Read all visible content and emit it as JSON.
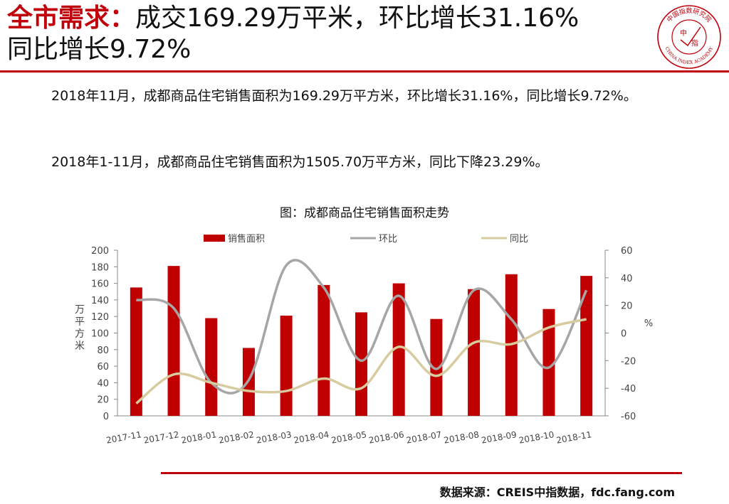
{
  "title": {
    "highlight": "全市需求：",
    "line1_rest": "成交169.29万平米，环比增长31.16%",
    "line2": "同比增长9.72%"
  },
  "logo": {
    "center_text_top": "中",
    "center_text_bottom": "指",
    "ring_text_cn": "中国指数研究院",
    "ring_text_en": "CHINA INDEX ACADEMY",
    "color": "#c0000b"
  },
  "paragraphs": [
    "2018年11月，成都商品住宅销售面积为169.29万平方米，环比增长31.16%，同比增长9.72%。",
    "2018年1-11月，成都商品住宅销售面积为1505.70万平方米，同比下降23.29%。"
  ],
  "chart_data": {
    "type": "bar",
    "title": "图：成都商品住宅销售面积走势",
    "categories": [
      "2017-11",
      "2017-12",
      "2018-01",
      "2018-02",
      "2018-03",
      "2018-04",
      "2018-05",
      "2018-06",
      "2018-07",
      "2018-08",
      "2018-09",
      "2018-10",
      "2018-11"
    ],
    "series": [
      {
        "name": "销售面积",
        "kind": "bar",
        "axis": "left",
        "color": "#c00000",
        "values": [
          155,
          181,
          118,
          82,
          121,
          158,
          125,
          160,
          117,
          153,
          171,
          129,
          169
        ]
      },
      {
        "name": "环比",
        "kind": "line",
        "axis": "right",
        "color": "#a6a6a6",
        "values": [
          24,
          18,
          -36,
          -34,
          49,
          33,
          -20,
          27,
          -26,
          31,
          10,
          -25,
          31
        ]
      },
      {
        "name": "同比",
        "kind": "line",
        "axis": "right",
        "color": "#d6cca0",
        "values": [
          -51,
          -30,
          -36,
          -42,
          -42,
          -33,
          -40,
          -10,
          -31,
          -7,
          -8,
          4,
          10
        ]
      }
    ],
    "ylabel_left": "万平方米",
    "ylabel_right": "%",
    "ylim_left": [
      0,
      200
    ],
    "yticks_left": [
      0,
      20,
      40,
      60,
      80,
      100,
      120,
      140,
      160,
      180,
      200
    ],
    "ylim_right": [
      -60,
      60
    ],
    "yticks_right": [
      -60,
      -40,
      -20,
      0,
      20,
      40,
      60
    ],
    "grid": false,
    "legend_position": "top"
  },
  "source": "数据来源：CREIS中指数据，fdc.fang.com"
}
